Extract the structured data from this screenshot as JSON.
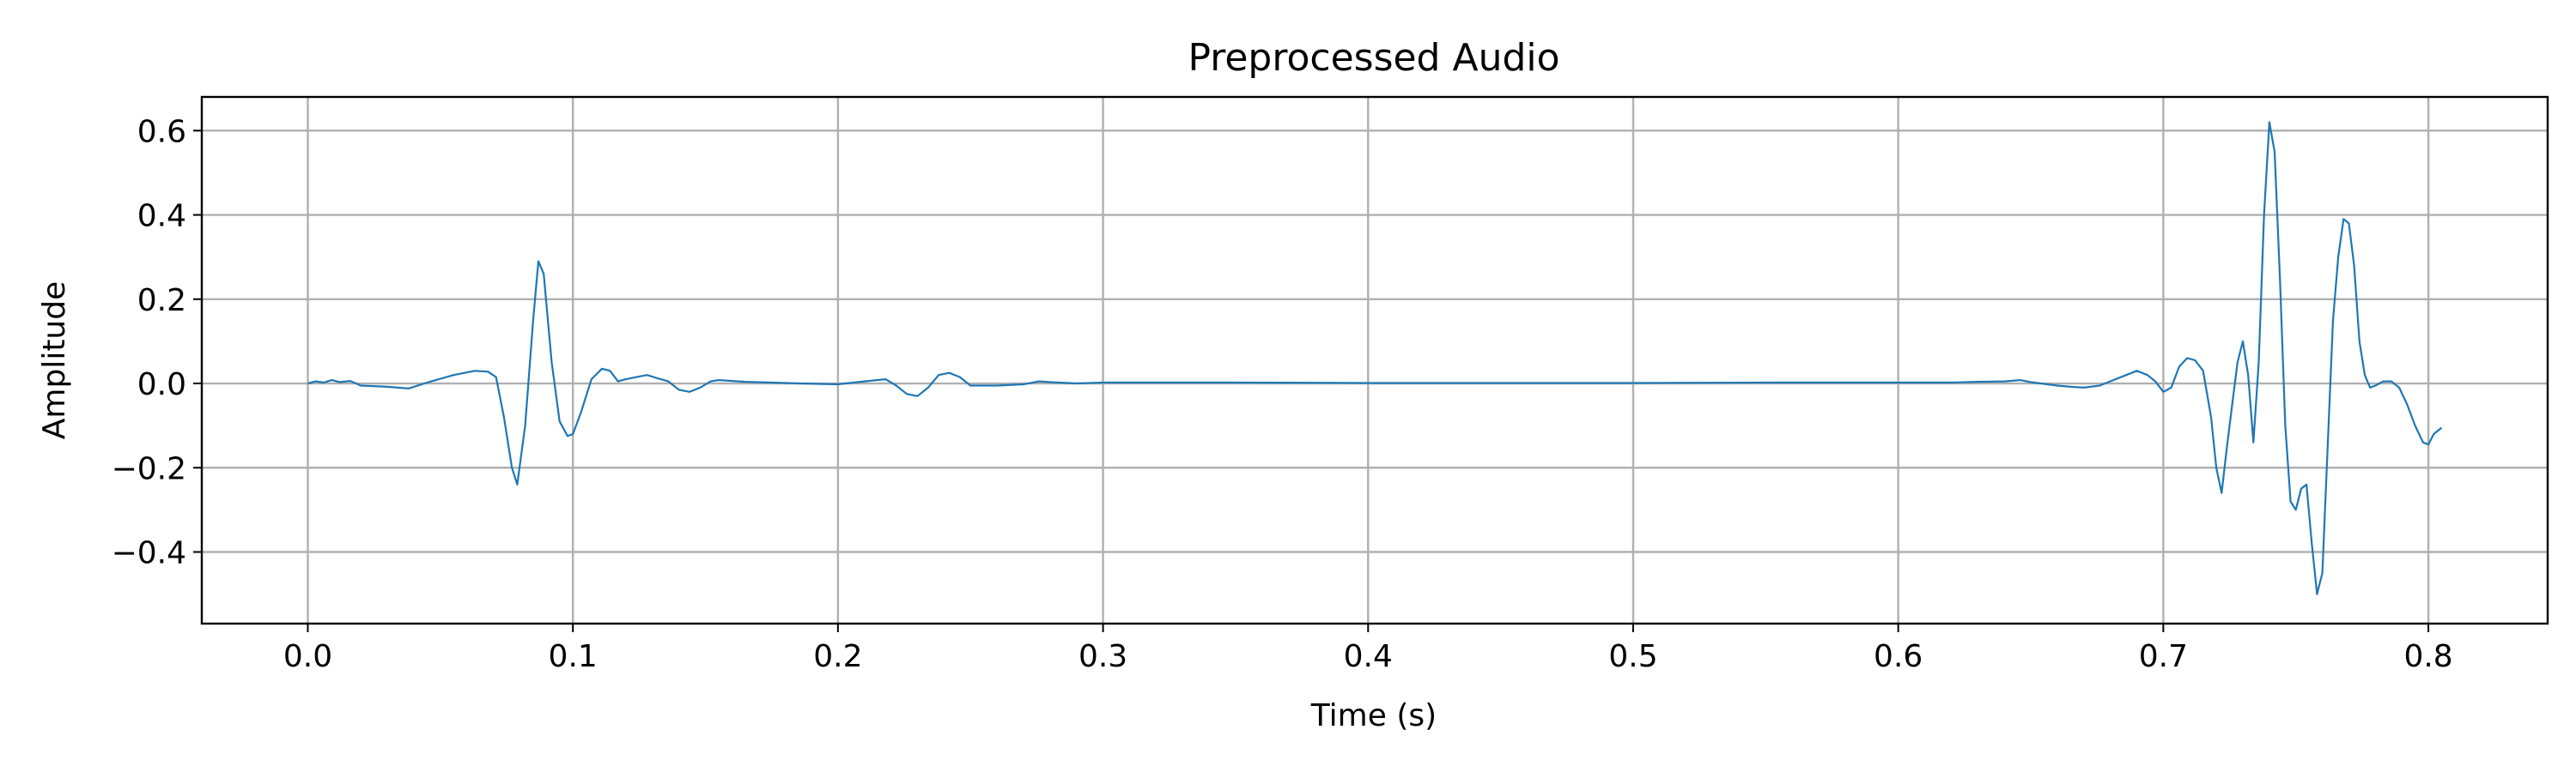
{
  "chart_data": {
    "type": "line",
    "title": "Preprocessed Audio",
    "xlabel": "Time (s)",
    "ylabel": "Amplitude",
    "xlim": [
      -0.04,
      0.845
    ],
    "ylim": [
      -0.57,
      0.68
    ],
    "xticks": [
      0.0,
      0.1,
      0.2,
      0.3,
      0.4,
      0.5,
      0.6,
      0.7,
      0.8
    ],
    "xtick_labels": [
      "0.0",
      "0.1",
      "0.2",
      "0.3",
      "0.4",
      "0.5",
      "0.6",
      "0.7",
      "0.8"
    ],
    "yticks": [
      -0.4,
      -0.2,
      0.0,
      0.2,
      0.4,
      0.6
    ],
    "ytick_labels": [
      "−0.4",
      "−0.2",
      "0.0",
      "0.2",
      "0.4",
      "0.6"
    ],
    "grid": true,
    "series": [
      {
        "color": "#1f77b4",
        "x": [
          0.0,
          0.003,
          0.006,
          0.009,
          0.012,
          0.016,
          0.02,
          0.03,
          0.038,
          0.045,
          0.055,
          0.063,
          0.068,
          0.071,
          0.074,
          0.077,
          0.079,
          0.082,
          0.085,
          0.087,
          0.089,
          0.092,
          0.095,
          0.098,
          0.1,
          0.103,
          0.107,
          0.111,
          0.114,
          0.117,
          0.12,
          0.124,
          0.128,
          0.132,
          0.136,
          0.14,
          0.144,
          0.148,
          0.152,
          0.155,
          0.165,
          0.175,
          0.185,
          0.2,
          0.21,
          0.218,
          0.222,
          0.226,
          0.23,
          0.234,
          0.238,
          0.242,
          0.246,
          0.25,
          0.26,
          0.27,
          0.276,
          0.28,
          0.29,
          0.3,
          0.35,
          0.4,
          0.45,
          0.5,
          0.55,
          0.6,
          0.62,
          0.63,
          0.64,
          0.646,
          0.65,
          0.66,
          0.665,
          0.67,
          0.676,
          0.682,
          0.686,
          0.69,
          0.694,
          0.697,
          0.7,
          0.703,
          0.706,
          0.709,
          0.712,
          0.715,
          0.718,
          0.72,
          0.722,
          0.724,
          0.726,
          0.728,
          0.73,
          0.732,
          0.734,
          0.736,
          0.738,
          0.74,
          0.742,
          0.744,
          0.746,
          0.748,
          0.75,
          0.752,
          0.754,
          0.756,
          0.758,
          0.76,
          0.762,
          0.764,
          0.766,
          0.768,
          0.77,
          0.772,
          0.774,
          0.776,
          0.778,
          0.78,
          0.783,
          0.786,
          0.789,
          0.792,
          0.795,
          0.798,
          0.8,
          0.802,
          0.805
        ],
        "y": [
          0.0,
          0.005,
          0.002,
          0.008,
          0.003,
          0.006,
          -0.005,
          -0.008,
          -0.012,
          0.002,
          0.02,
          0.03,
          0.028,
          0.015,
          -0.08,
          -0.2,
          -0.24,
          -0.1,
          0.15,
          0.29,
          0.26,
          0.05,
          -0.09,
          -0.125,
          -0.12,
          -0.07,
          0.01,
          0.035,
          0.03,
          0.005,
          0.01,
          0.015,
          0.02,
          0.012,
          0.005,
          -0.015,
          -0.02,
          -0.01,
          0.005,
          0.008,
          0.004,
          0.002,
          0.0,
          -0.002,
          0.005,
          0.01,
          -0.005,
          -0.025,
          -0.03,
          -0.01,
          0.02,
          0.025,
          0.015,
          -0.005,
          -0.005,
          -0.002,
          0.005,
          0.003,
          0.0,
          0.002,
          0.002,
          0.001,
          0.001,
          0.001,
          0.002,
          0.002,
          0.002,
          0.004,
          0.005,
          0.008,
          0.003,
          -0.005,
          -0.008,
          -0.01,
          -0.005,
          0.01,
          0.02,
          0.03,
          0.02,
          0.005,
          -0.02,
          -0.01,
          0.04,
          0.06,
          0.055,
          0.03,
          -0.08,
          -0.2,
          -0.26,
          -0.15,
          -0.05,
          0.05,
          0.1,
          0.02,
          -0.14,
          0.05,
          0.4,
          0.62,
          0.55,
          0.25,
          -0.1,
          -0.28,
          -0.3,
          -0.25,
          -0.24,
          -0.38,
          -0.5,
          -0.45,
          -0.15,
          0.15,
          0.3,
          0.39,
          0.38,
          0.28,
          0.1,
          0.02,
          -0.01,
          -0.005,
          0.005,
          0.005,
          -0.01,
          -0.05,
          -0.1,
          -0.14,
          -0.145,
          -0.12,
          -0.105
        ]
      }
    ]
  }
}
